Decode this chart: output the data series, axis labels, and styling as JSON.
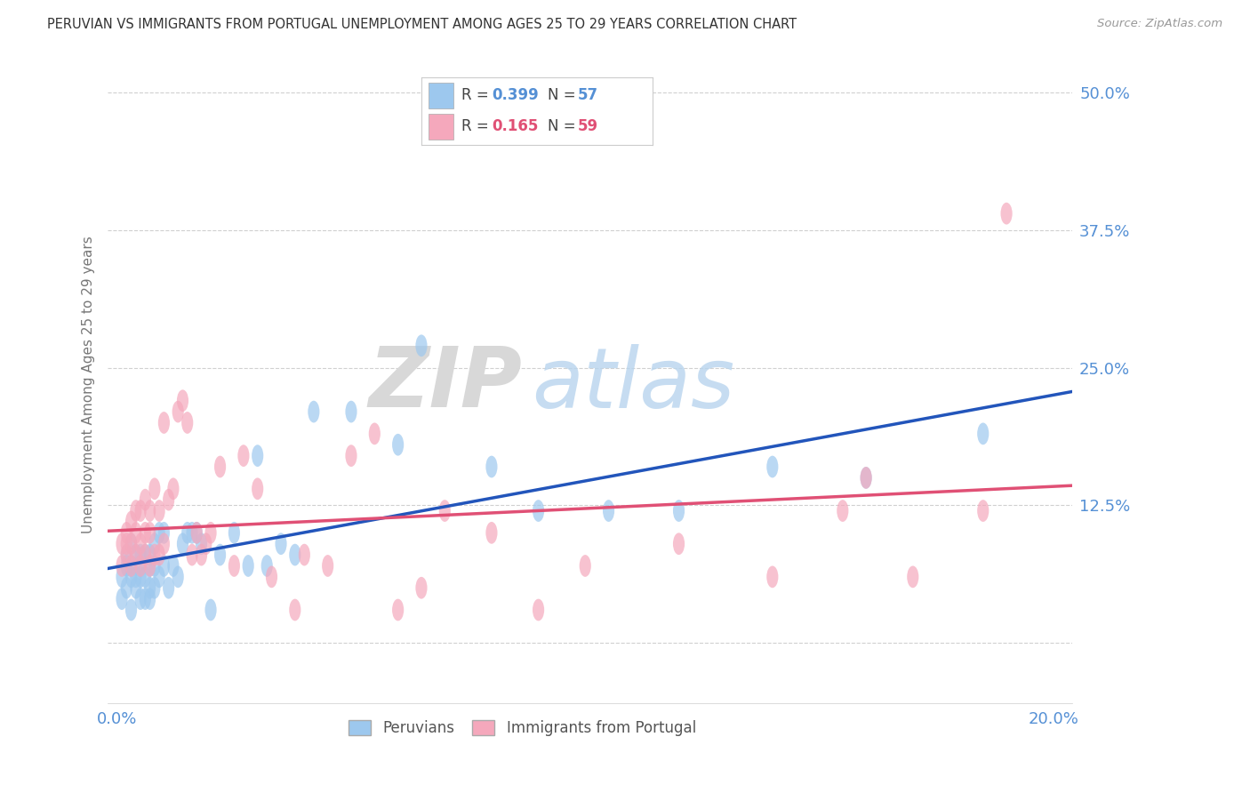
{
  "title": "PERUVIAN VS IMMIGRANTS FROM PORTUGAL UNEMPLOYMENT AMONG AGES 25 TO 29 YEARS CORRELATION CHART",
  "source": "Source: ZipAtlas.com",
  "ylabel": "Unemployment Among Ages 25 to 29 years",
  "xlim_min": -0.002,
  "xlim_max": 0.204,
  "ylim_min": -0.055,
  "ylim_max": 0.525,
  "ytick_vals": [
    0.0,
    0.125,
    0.25,
    0.375,
    0.5
  ],
  "ytick_labels": [
    "",
    "12.5%",
    "25.0%",
    "37.5%",
    "50.0%"
  ],
  "xtick_vals": [
    0.0,
    0.05,
    0.1,
    0.15,
    0.2
  ],
  "xtick_labels": [
    "0.0%",
    "",
    "",
    "",
    "20.0%"
  ],
  "series1_label": "Peruvians",
  "series1_R": "0.399",
  "series1_N": "57",
  "series1_color": "#9DC8EE",
  "series1_line_color": "#2255BB",
  "series2_label": "Immigrants from Portugal",
  "series2_R": "0.165",
  "series2_N": "59",
  "series2_color": "#F5A8BC",
  "series2_line_color": "#E05075",
  "watermark_zip": "ZIP",
  "watermark_atlas": "atlas",
  "bg_color": "#ffffff",
  "title_color": "#333333",
  "axis_label_color": "#5590D5",
  "grid_color": "#d0d0d0",
  "series1_x": [
    0.001,
    0.001,
    0.002,
    0.002,
    0.002,
    0.003,
    0.003,
    0.003,
    0.003,
    0.004,
    0.004,
    0.004,
    0.005,
    0.005,
    0.005,
    0.005,
    0.006,
    0.006,
    0.006,
    0.007,
    0.007,
    0.007,
    0.007,
    0.008,
    0.008,
    0.008,
    0.009,
    0.009,
    0.01,
    0.01,
    0.011,
    0.012,
    0.013,
    0.014,
    0.015,
    0.016,
    0.017,
    0.018,
    0.02,
    0.022,
    0.025,
    0.028,
    0.03,
    0.032,
    0.035,
    0.038,
    0.042,
    0.05,
    0.06,
    0.065,
    0.08,
    0.09,
    0.105,
    0.12,
    0.14,
    0.16,
    0.185
  ],
  "series1_y": [
    0.04,
    0.06,
    0.05,
    0.07,
    0.08,
    0.03,
    0.06,
    0.07,
    0.09,
    0.05,
    0.06,
    0.08,
    0.04,
    0.06,
    0.07,
    0.08,
    0.04,
    0.06,
    0.08,
    0.04,
    0.05,
    0.07,
    0.08,
    0.05,
    0.07,
    0.09,
    0.06,
    0.1,
    0.07,
    0.1,
    0.05,
    0.07,
    0.06,
    0.09,
    0.1,
    0.1,
    0.1,
    0.09,
    0.03,
    0.08,
    0.1,
    0.07,
    0.17,
    0.07,
    0.09,
    0.08,
    0.21,
    0.21,
    0.18,
    0.27,
    0.16,
    0.12,
    0.12,
    0.12,
    0.16,
    0.15,
    0.19
  ],
  "series2_x": [
    0.001,
    0.001,
    0.002,
    0.002,
    0.002,
    0.003,
    0.003,
    0.003,
    0.004,
    0.004,
    0.004,
    0.005,
    0.005,
    0.005,
    0.006,
    0.006,
    0.006,
    0.007,
    0.007,
    0.007,
    0.008,
    0.008,
    0.009,
    0.009,
    0.01,
    0.01,
    0.011,
    0.012,
    0.013,
    0.014,
    0.015,
    0.016,
    0.017,
    0.018,
    0.019,
    0.02,
    0.022,
    0.025,
    0.027,
    0.03,
    0.033,
    0.038,
    0.04,
    0.045,
    0.05,
    0.055,
    0.06,
    0.065,
    0.07,
    0.08,
    0.09,
    0.1,
    0.12,
    0.14,
    0.155,
    0.16,
    0.17,
    0.185,
    0.19
  ],
  "series2_y": [
    0.07,
    0.09,
    0.08,
    0.09,
    0.1,
    0.07,
    0.09,
    0.11,
    0.08,
    0.1,
    0.12,
    0.07,
    0.09,
    0.12,
    0.08,
    0.1,
    0.13,
    0.07,
    0.1,
    0.12,
    0.08,
    0.14,
    0.08,
    0.12,
    0.09,
    0.2,
    0.13,
    0.14,
    0.21,
    0.22,
    0.2,
    0.08,
    0.1,
    0.08,
    0.09,
    0.1,
    0.16,
    0.07,
    0.17,
    0.14,
    0.06,
    0.03,
    0.08,
    0.07,
    0.17,
    0.19,
    0.03,
    0.05,
    0.12,
    0.1,
    0.03,
    0.07,
    0.09,
    0.06,
    0.12,
    0.15,
    0.06,
    0.12,
    0.39
  ]
}
